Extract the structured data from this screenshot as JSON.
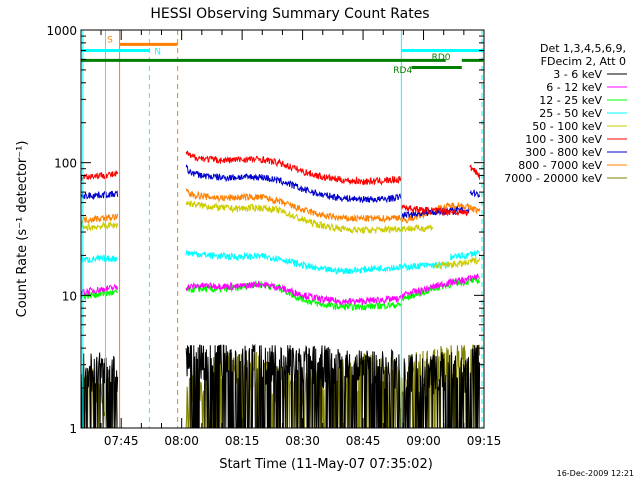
{
  "chart_data": {
    "type": "line",
    "title": "HESSI Observing Summary Count Rates",
    "xlabel": "Start Time (11-May-07 07:35:02)",
    "ylabel": "Count Rate (s⁻¹ detector⁻¹)",
    "y_scale": "log",
    "ylim": [
      1,
      1000
    ],
    "xlim_minutes": [
      35.03,
      135.0
    ],
    "x_tick_labels": [
      "07:45",
      "08:00",
      "08:15",
      "08:30",
      "08:45",
      "09:00",
      "09:15"
    ],
    "x_tick_minutes": [
      45,
      60,
      75,
      90,
      105,
      120,
      135
    ],
    "y_tick_labels": [
      "1",
      "10",
      "100",
      "1000"
    ],
    "y_tick_values": [
      1,
      10,
      100,
      1000
    ],
    "legend_header": [
      "Det 1,3,4,5,6,9,",
      "FDecim 2, Att 0"
    ],
    "legend_placement": "right",
    "footer_date": "16-Dec-2009 12:21",
    "series": [
      {
        "name": "3 - 6 keV",
        "color": "#000000",
        "segments": [
          {
            "x": [
              35.1,
              44.1
            ],
            "y": [
              2.6,
              2.4
            ]
          },
          {
            "x": [
              61.1,
              64,
              72,
              80,
              88,
              96,
              104,
              110,
              114.4
            ],
            "y": [
              3.0,
              3.2,
              3.1,
              3.0,
              2.9,
              2.8,
              2.7,
              2.6,
              2.6
            ]
          },
          {
            "x": [
              114.6,
              120,
              127,
              131.3
            ],
            "y": [
              2.5,
              2.4,
              2.5,
              2.6
            ]
          },
          {
            "x": [
              131.5,
              134.0
            ],
            "y": [
              3.4,
              3.5
            ]
          }
        ]
      },
      {
        "name": "6 - 12 keV",
        "color": "#ff00ff",
        "segments": [
          {
            "x": [
              35.1,
              39,
              44.1
            ],
            "y": [
              10.5,
              11,
              11.5
            ]
          },
          {
            "x": [
              61.1,
              64,
              69,
              74,
              79,
              84,
              89,
              94,
              99,
              104,
              108,
              114.4
            ],
            "y": [
              11.5,
              11.8,
              11.8,
              11.6,
              12.2,
              11.5,
              10.3,
              9.4,
              9.0,
              9.0,
              9.2,
              9.4
            ]
          },
          {
            "x": [
              114.6,
              116.5,
              120,
              124,
              128,
              131.3
            ],
            "y": [
              10.0,
              10.4,
              11.0,
              12.0,
              12.8,
              13.2
            ]
          },
          {
            "x": [
              131.5,
              134.0
            ],
            "y": [
              13.5,
              14.0
            ]
          }
        ]
      },
      {
        "name": "12 - 25 keV",
        "color": "#00ff00",
        "segments": [
          {
            "x": [
              35.1,
              39,
              44.1
            ],
            "y": [
              9.8,
              10.2,
              10.5
            ]
          },
          {
            "x": [
              61.1,
              64,
              69,
              74,
              79,
              84,
              89,
              94,
              99,
              104,
              108,
              114.4
            ],
            "y": [
              11.0,
              11.2,
              11.1,
              11.4,
              12.3,
              11.4,
              9.6,
              8.6,
              8.2,
              8.2,
              8.3,
              8.5
            ]
          },
          {
            "x": [
              114.6,
              116.5,
              120,
              124,
              128,
              131.3
            ],
            "y": [
              9.3,
              9.8,
              10.6,
              11.6,
              12.4,
              12.8
            ]
          },
          {
            "x": [
              131.5,
              134.0
            ],
            "y": [
              12.8,
              13.0
            ]
          }
        ]
      },
      {
        "name": "25 - 50 keV",
        "color": "#00ffff",
        "segments": [
          {
            "x": [
              35.1,
              39,
              44.1
            ],
            "y": [
              18.5,
              18.8,
              19.0
            ]
          },
          {
            "x": [
              61.1,
              64,
              69,
              74,
              79,
              84,
              89,
              94,
              99,
              104,
              108,
              114.4
            ],
            "y": [
              21.0,
              20.5,
              19.8,
              19.5,
              19.8,
              19.0,
              17.2,
              15.8,
              15.3,
              15.5,
              16.0,
              16.3
            ]
          },
          {
            "x": [
              114.6,
              117,
              120,
              126.5
            ],
            "y": [
              16.3,
              16.5,
              16.8,
              17.0
            ]
          },
          {
            "x": [
              126.7,
              131.3
            ],
            "y": [
              19.5,
              20.0
            ]
          },
          {
            "x": [
              131.5,
              134.0
            ],
            "y": [
              20.5,
              21.0
            ]
          }
        ]
      },
      {
        "name": "50 - 100 keV",
        "color": "#cccc00",
        "segments": [
          {
            "x": [
              35.1,
              39,
              44.1
            ],
            "y": [
              32,
              33,
              34
            ]
          },
          {
            "x": [
              61.1,
              64,
              69,
              74,
              79,
              84,
              89,
              94,
              99,
              104,
              108,
              114.4
            ],
            "y": [
              50,
              48,
              46,
              45,
              46,
              44,
              38,
              34,
              32,
              31,
              31,
              32
            ]
          },
          {
            "x": [
              114.6,
              117,
              120,
              122.5
            ],
            "y": [
              32,
              32,
              32,
              33
            ]
          },
          {
            "x": [
              122.7,
              126,
              131.3
            ],
            "y": [
              16.5,
              17,
              17.5
            ]
          },
          {
            "x": [
              131.5,
              134.0
            ],
            "y": [
              18,
              18.5
            ]
          }
        ]
      },
      {
        "name": "100 - 300 keV",
        "color": "#ff0000",
        "segments": [
          {
            "x": [
              35.1,
              39,
              44.1
            ],
            "y": [
              78,
              80,
              82
            ]
          },
          {
            "x": [
              61.1,
              62,
              65,
              70,
              75,
              80,
              85,
              90,
              95,
              100,
              105,
              110,
              114.4
            ],
            "y": [
              120,
              112,
              108,
              104,
              106,
              106,
              98,
              86,
              78,
              74,
              72,
              73,
              75
            ]
          },
          {
            "x": [
              114.6,
              117,
              120,
              125,
              131.3
            ],
            "y": [
              47,
              45,
              44,
              43,
              42
            ]
          },
          {
            "x": [
              131.5,
              132.5,
              134.0
            ],
            "y": [
              92,
              90,
              78
            ]
          }
        ]
      },
      {
        "name": "300 - 800 keV",
        "color": "#0000cc",
        "segments": [
          {
            "x": [
              35.1,
              39,
              44.1
            ],
            "y": [
              56,
              57,
              58
            ]
          },
          {
            "x": [
              61.1,
              62,
              65,
              70,
              75,
              80,
              85,
              90,
              95,
              100,
              105,
              110,
              114.4
            ],
            "y": [
              92,
              85,
              80,
              77,
              78,
              78,
              72,
              63,
              57,
              54,
              53,
              53,
              55
            ]
          },
          {
            "x": [
              114.6,
              117,
              120,
              125,
              131.3
            ],
            "y": [
              40,
              41,
              42,
              43,
              44
            ]
          },
          {
            "x": [
              131.5,
              134.0
            ],
            "y": [
              60,
              58
            ]
          }
        ]
      },
      {
        "name": "800 - 7000 keV",
        "color": "#ff8000",
        "segments": [
          {
            "x": [
              35.1,
              39,
              44.1
            ],
            "y": [
              37,
              38,
              39
            ]
          },
          {
            "x": [
              61.1,
              62,
              65,
              70,
              75,
              80,
              85,
              90,
              95,
              100,
              105,
              110,
              114.4
            ],
            "y": [
              62,
              58,
              56,
              54,
              55,
              55,
              50,
              44,
              40,
              38,
              38,
              38,
              39
            ]
          },
          {
            "x": [
              114.6,
              117,
              120,
              123,
              126,
              129,
              131.3
            ],
            "y": [
              36,
              38,
              41,
              44,
              47,
              48,
              46
            ]
          },
          {
            "x": [
              131.5,
              134.0
            ],
            "y": [
              46,
              43
            ]
          }
        ]
      },
      {
        "name": "7000 - 20000 keV",
        "color": "#808000",
        "segments": [
          {
            "x": [
              35.1,
              38,
              41,
              44.1
            ],
            "y": [
              1.7,
              2.0,
              1.6,
              1.9
            ]
          },
          {
            "x": [
              61.1,
              64,
              70,
              78,
              86,
              94,
              100,
              106,
              112,
              114.4
            ],
            "y": [
              1.6,
              1.9,
              2.5,
              2.6,
              2.0,
              1.8,
              2.2,
              2.5,
              2.3,
              2.0
            ]
          },
          {
            "x": [
              114.6,
              118,
              122,
              126,
              131.3
            ],
            "y": [
              2.2,
              2.5,
              2.8,
              2.9,
              3.0
            ]
          },
          {
            "x": [
              131.5,
              134.0
            ],
            "y": [
              3.1,
              3.3
            ]
          }
        ]
      }
    ],
    "vertical_lines": [
      {
        "x": 35.5,
        "color": "#00ffff",
        "style": "solid"
      },
      {
        "x": 41.1,
        "color": "#00ffff",
        "style": "solid"
      },
      {
        "x": 44.6,
        "color": "#ff8000",
        "style": "solid"
      },
      {
        "x": 52.0,
        "color": "#00ffff",
        "style": "dashed"
      },
      {
        "x": 59.0,
        "color": "#ff8000",
        "style": "dashed"
      },
      {
        "x": 114.5,
        "color": "#00ffff",
        "style": "solid"
      },
      {
        "x": 134.5,
        "color": "#00ffff",
        "style": "dashed"
      }
    ],
    "flag_bars": [
      {
        "label": "S",
        "color": "#ff8000",
        "x": [
          44.6,
          59.0
        ],
        "y": 780
      },
      {
        "label": "N",
        "color": "#00ffff",
        "x": [
          35.1,
          52.0
        ],
        "y": 700
      },
      {
        "label": "",
        "color": "#00ffff",
        "x": [
          114.5,
          134.8
        ],
        "y": 700
      },
      {
        "label": "",
        "color": "#008000",
        "x": [
          35.1,
          125.5
        ],
        "y": 590
      },
      {
        "label": "",
        "color": "#008000",
        "x": [
          129.5,
          134.8
        ],
        "y": 590
      },
      {
        "label": "",
        "color": "#008000",
        "x": [
          117.0,
          129.5
        ],
        "y": 522
      }
    ],
    "flag_labels": [
      {
        "text": "S",
        "color": "#ff8000",
        "x": 41.5,
        "y": 860
      },
      {
        "text": "N",
        "color": "#00ffff",
        "x": 53.2,
        "y": 700
      },
      {
        "text": "RD0",
        "color": "#008000",
        "x": 122.0,
        "y": 635
      },
      {
        "text": "RD4",
        "color": "#008000",
        "x": 112.5,
        "y": 510
      }
    ]
  }
}
